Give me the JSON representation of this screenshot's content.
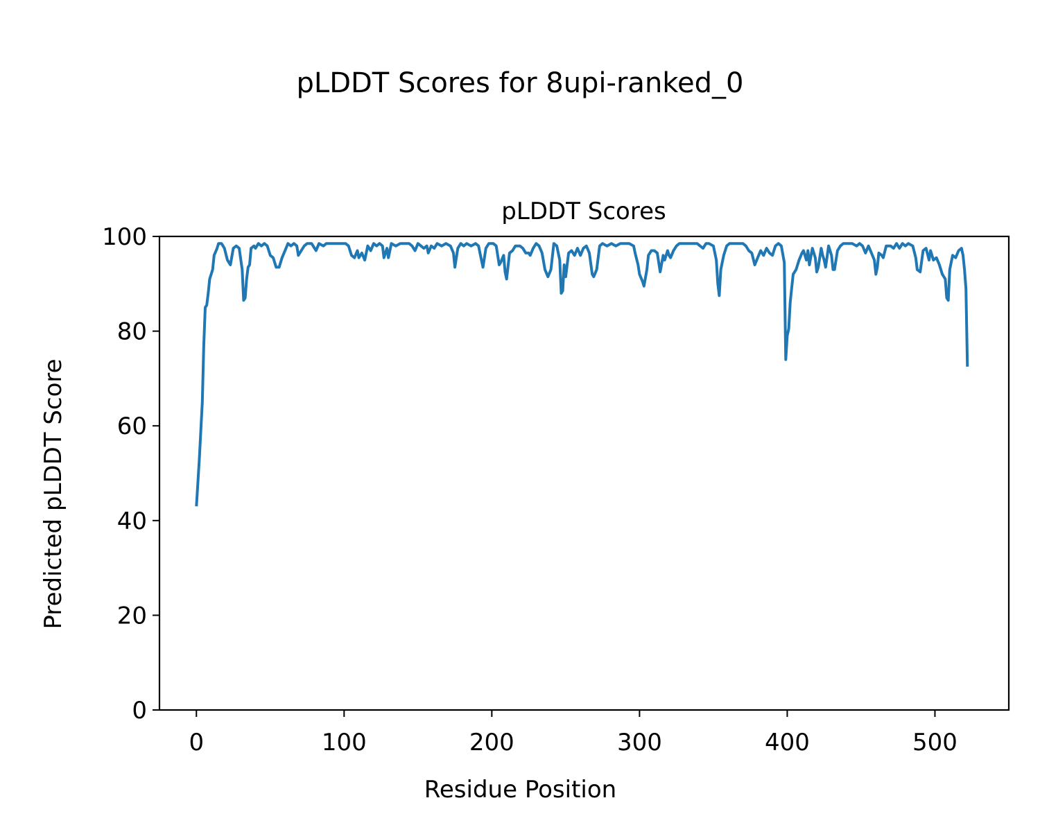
{
  "figure": {
    "suptitle": "pLDDT Scores for 8upi-ranked_0"
  },
  "chart_data": {
    "type": "line",
    "title": "pLDDT Scores",
    "xlabel": "Residue Position",
    "ylabel": "Predicted pLDDT Score",
    "xlim": [
      -25,
      550
    ],
    "ylim": [
      0,
      100
    ],
    "xticks": [
      0,
      100,
      200,
      300,
      400,
      500
    ],
    "yticks": [
      0,
      20,
      40,
      60,
      80,
      100
    ],
    "xtick_labels": [
      "0",
      "100",
      "200",
      "300",
      "400",
      "500"
    ],
    "ytick_labels": [
      "0",
      "20",
      "40",
      "60",
      "80",
      "100"
    ],
    "grid": false,
    "series": [
      {
        "color": "#1f77b4",
        "points": [
          [
            0,
            43
          ],
          [
            2,
            53
          ],
          [
            4,
            65
          ],
          [
            5,
            77
          ],
          [
            6,
            85
          ],
          [
            7,
            85.5
          ],
          [
            8,
            88
          ],
          [
            9,
            91
          ],
          [
            11,
            93
          ],
          [
            12,
            96
          ],
          [
            14,
            97.5
          ],
          [
            15,
            98.5
          ],
          [
            17,
            98.5
          ],
          [
            19,
            97.5
          ],
          [
            21,
            95
          ],
          [
            23,
            94
          ],
          [
            25,
            97.5
          ],
          [
            27,
            98
          ],
          [
            29,
            97.5
          ],
          [
            31,
            93
          ],
          [
            32,
            86.5
          ],
          [
            33,
            87
          ],
          [
            34,
            91
          ],
          [
            35,
            93.5
          ],
          [
            36,
            94
          ],
          [
            37,
            97.5
          ],
          [
            39,
            98
          ],
          [
            40,
            97.5
          ],
          [
            42,
            98.5
          ],
          [
            44,
            98
          ],
          [
            46,
            98.5
          ],
          [
            48,
            98
          ],
          [
            50,
            96
          ],
          [
            52,
            95.5
          ],
          [
            54,
            93.5
          ],
          [
            56,
            93.5
          ],
          [
            58,
            95.5
          ],
          [
            60,
            97
          ],
          [
            62,
            98.5
          ],
          [
            64,
            98
          ],
          [
            66,
            98.5
          ],
          [
            68,
            98
          ],
          [
            69,
            96
          ],
          [
            71,
            97
          ],
          [
            73,
            98
          ],
          [
            75,
            98.5
          ],
          [
            78,
            98.5
          ],
          [
            80,
            97.5
          ],
          [
            81,
            97
          ],
          [
            83,
            98.5
          ],
          [
            86,
            98
          ],
          [
            88,
            98.5
          ],
          [
            92,
            98.5
          ],
          [
            95,
            98.5
          ],
          [
            98,
            98.5
          ],
          [
            101,
            98.5
          ],
          [
            103,
            98
          ],
          [
            105,
            96
          ],
          [
            107,
            95.5
          ],
          [
            109,
            97
          ],
          [
            110,
            95.5
          ],
          [
            112,
            96.5
          ],
          [
            114,
            95
          ],
          [
            116,
            98
          ],
          [
            118,
            97
          ],
          [
            120,
            98.5
          ],
          [
            122,
            98
          ],
          [
            124,
            98.5
          ],
          [
            126,
            98
          ],
          [
            127,
            95.5
          ],
          [
            129,
            97.5
          ],
          [
            130,
            95.5
          ],
          [
            132,
            98.5
          ],
          [
            135,
            98
          ],
          [
            138,
            98.5
          ],
          [
            141,
            98.5
          ],
          [
            144,
            98.5
          ],
          [
            146,
            98
          ],
          [
            148,
            97
          ],
          [
            150,
            98.5
          ],
          [
            152,
            98
          ],
          [
            154,
            97.5
          ],
          [
            156,
            98
          ],
          [
            157,
            96.5
          ],
          [
            159,
            98
          ],
          [
            161,
            97.5
          ],
          [
            163,
            98.5
          ],
          [
            166,
            98
          ],
          [
            169,
            98.5
          ],
          [
            172,
            98
          ],
          [
            174,
            96.5
          ],
          [
            175,
            93.5
          ],
          [
            177,
            97.5
          ],
          [
            179,
            98.5
          ],
          [
            181,
            98
          ],
          [
            183,
            98.5
          ],
          [
            186,
            98
          ],
          [
            189,
            98.5
          ],
          [
            191,
            98
          ],
          [
            193,
            95
          ],
          [
            194,
            93.5
          ],
          [
            196,
            97.5
          ],
          [
            198,
            98.5
          ],
          [
            201,
            98.5
          ],
          [
            203,
            98
          ],
          [
            205,
            94
          ],
          [
            206,
            94.5
          ],
          [
            208,
            96
          ],
          [
            209,
            92.5
          ],
          [
            210,
            91
          ],
          [
            212,
            96.5
          ],
          [
            214,
            97
          ],
          [
            216,
            98
          ],
          [
            219,
            98
          ],
          [
            221,
            97.5
          ],
          [
            223,
            96.5
          ],
          [
            225,
            96.5
          ],
          [
            226,
            96
          ],
          [
            228,
            97.5
          ],
          [
            230,
            98.5
          ],
          [
            232,
            98
          ],
          [
            234,
            96.5
          ],
          [
            236,
            93
          ],
          [
            238,
            91.5
          ],
          [
            240,
            93
          ],
          [
            242,
            98.5
          ],
          [
            244,
            98
          ],
          [
            246,
            95
          ],
          [
            247,
            88
          ],
          [
            248,
            88.5
          ],
          [
            249,
            94
          ],
          [
            250,
            91.5
          ],
          [
            251,
            94
          ],
          [
            252,
            96.5
          ],
          [
            254,
            97
          ],
          [
            256,
            96
          ],
          [
            258,
            97.5
          ],
          [
            260,
            96
          ],
          [
            262,
            97.5
          ],
          [
            264,
            98
          ],
          [
            266,
            96.5
          ],
          [
            268,
            92
          ],
          [
            269,
            91.5
          ],
          [
            271,
            93
          ],
          [
            273,
            98
          ],
          [
            275,
            98.5
          ],
          [
            278,
            98
          ],
          [
            281,
            98.5
          ],
          [
            284,
            98
          ],
          [
            287,
            98.5
          ],
          [
            290,
            98.5
          ],
          [
            293,
            98.5
          ],
          [
            296,
            98
          ],
          [
            297,
            96.5
          ],
          [
            299,
            94
          ],
          [
            300,
            92
          ],
          [
            302,
            90.5
          ],
          [
            303,
            89.5
          ],
          [
            305,
            93
          ],
          [
            306,
            96
          ],
          [
            308,
            97
          ],
          [
            310,
            97
          ],
          [
            312,
            96.5
          ],
          [
            313,
            94.5
          ],
          [
            314,
            92.5
          ],
          [
            316,
            96
          ],
          [
            317,
            95
          ],
          [
            319,
            97
          ],
          [
            320,
            96
          ],
          [
            321,
            95.5
          ],
          [
            323,
            97
          ],
          [
            325,
            98
          ],
          [
            327,
            98.5
          ],
          [
            330,
            98.5
          ],
          [
            333,
            98.5
          ],
          [
            336,
            98.5
          ],
          [
            339,
            98.5
          ],
          [
            341,
            98
          ],
          [
            343,
            97.5
          ],
          [
            345,
            98.5
          ],
          [
            347,
            98.5
          ],
          [
            350,
            98
          ],
          [
            352,
            95
          ],
          [
            353,
            90
          ],
          [
            354,
            87.5
          ],
          [
            355,
            93
          ],
          [
            357,
            96
          ],
          [
            359,
            98
          ],
          [
            361,
            98.5
          ],
          [
            364,
            98.5
          ],
          [
            367,
            98.5
          ],
          [
            370,
            98.5
          ],
          [
            372,
            98
          ],
          [
            374,
            97
          ],
          [
            376,
            96.5
          ],
          [
            378,
            94
          ],
          [
            380,
            95.5
          ],
          [
            382,
            97
          ],
          [
            384,
            96
          ],
          [
            386,
            97.5
          ],
          [
            388,
            96.5
          ],
          [
            390,
            96
          ],
          [
            392,
            98
          ],
          [
            394,
            98.5
          ],
          [
            396,
            98
          ],
          [
            398,
            94.5
          ],
          [
            399,
            74
          ],
          [
            400,
            79
          ],
          [
            401,
            80.5
          ],
          [
            402,
            86
          ],
          [
            403,
            89
          ],
          [
            404,
            92
          ],
          [
            406,
            93
          ],
          [
            408,
            95
          ],
          [
            410,
            96.5
          ],
          [
            411,
            97
          ],
          [
            413,
            95
          ],
          [
            414,
            97
          ],
          [
            415,
            94
          ],
          [
            417,
            97.5
          ],
          [
            419,
            95.5
          ],
          [
            420,
            92.5
          ],
          [
            421,
            93.5
          ],
          [
            423,
            97.5
          ],
          [
            424,
            96
          ],
          [
            425,
            95
          ],
          [
            426,
            93.5
          ],
          [
            428,
            98
          ],
          [
            430,
            96
          ],
          [
            431,
            93
          ],
          [
            432,
            93
          ],
          [
            434,
            97
          ],
          [
            436,
            98
          ],
          [
            438,
            98.5
          ],
          [
            441,
            98.5
          ],
          [
            444,
            98.5
          ],
          [
            447,
            98
          ],
          [
            449,
            98.5
          ],
          [
            451,
            98
          ],
          [
            453,
            96.5
          ],
          [
            455,
            98
          ],
          [
            457,
            96.5
          ],
          [
            459,
            95
          ],
          [
            460,
            92
          ],
          [
            461,
            93.5
          ],
          [
            462,
            96.5
          ],
          [
            464,
            96
          ],
          [
            465,
            95.5
          ],
          [
            467,
            98
          ],
          [
            470,
            98
          ],
          [
            472,
            97.5
          ],
          [
            474,
            98.5
          ],
          [
            476,
            97.5
          ],
          [
            478,
            98.5
          ],
          [
            480,
            98
          ],
          [
            482,
            98.5
          ],
          [
            485,
            98
          ],
          [
            487,
            95.5
          ],
          [
            488,
            93
          ],
          [
            490,
            92.5
          ],
          [
            492,
            97
          ],
          [
            494,
            97.5
          ],
          [
            496,
            95
          ],
          [
            497,
            97
          ],
          [
            499,
            95
          ],
          [
            501,
            95.5
          ],
          [
            503,
            94
          ],
          [
            505,
            92
          ],
          [
            507,
            91
          ],
          [
            508,
            87
          ],
          [
            509,
            86.5
          ],
          [
            510,
            93
          ],
          [
            512,
            96
          ],
          [
            514,
            95.5
          ],
          [
            516,
            97
          ],
          [
            518,
            97.5
          ],
          [
            519,
            96
          ],
          [
            520,
            93
          ],
          [
            521,
            89
          ],
          [
            522,
            72.5
          ]
        ]
      }
    ]
  }
}
